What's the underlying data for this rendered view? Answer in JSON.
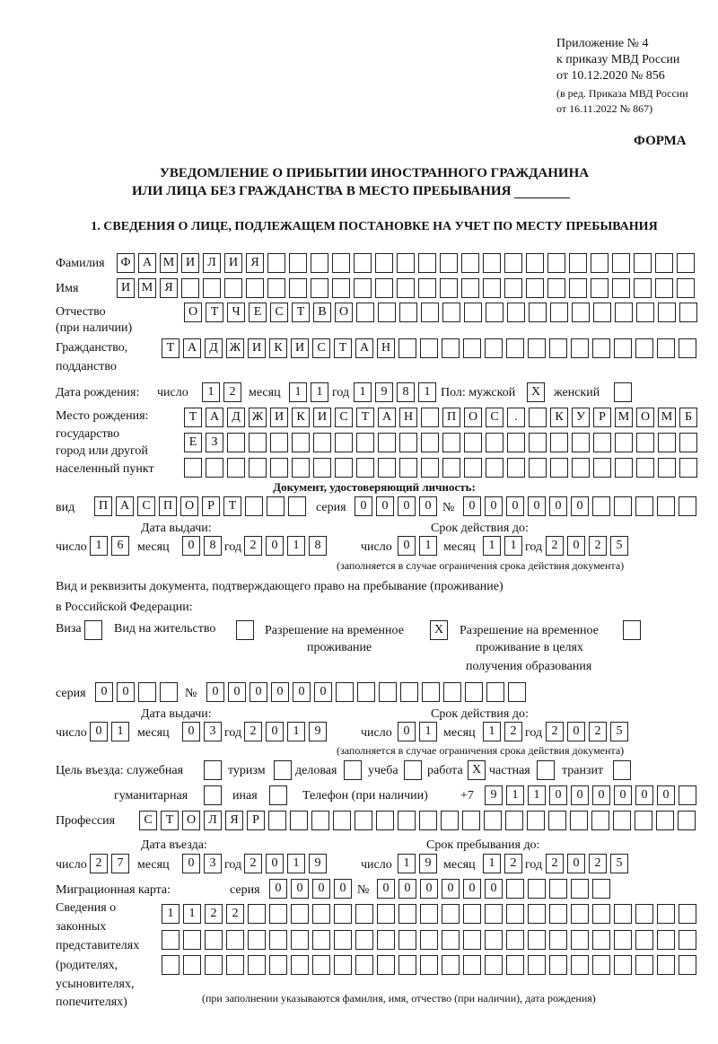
{
  "header": {
    "appendix": "Приложение № 4",
    "order": "к приказу МВД России",
    "order_date": "от 10.12.2020 № 856",
    "revision_1": "(в ред. Приказа МВД России",
    "revision_2": "от 16.11.2022 № 867)",
    "form_label": "ФОРМА",
    "title_1": "УВЕДОМЛЕНИЕ О ПРИБЫТИИ ИНОСТРАННОГО ГРАЖДАНИНА",
    "title_2": "ИЛИ ЛИЦА БЕЗ ГРАЖДАНСТВА В МЕСТО ПРЕБЫВАНИЯ",
    "section_1": "1. СВЕДЕНИЯ О ЛИЦЕ, ПОДЛЕЖАЩЕМ ПОСТАНОВКЕ НА УЧЕТ ПО МЕСТУ ПРЕБЫВАНИЯ"
  },
  "labels": {
    "surname": "Фамилия",
    "name": "Имя",
    "patronymic_1": "Отчество",
    "patronymic_2": "(при наличии)",
    "citizenship_1": "Гражданство,",
    "citizenship_2": "подданство",
    "birth_date": "Дата рождения:",
    "day": "число",
    "month": "месяц",
    "year": "год",
    "sex": "Пол: мужской",
    "female": "женский",
    "birthplace_1": "Место рождения:",
    "birthplace_2": "государство",
    "birthplace_3": "город или другой",
    "birthplace_4": "населенный пункт",
    "id_doc": "Документ, удостоверяющий личность:",
    "kind": "вид",
    "series": "серия",
    "number": "№",
    "issue_date": "Дата выдачи:",
    "valid_until": "Срок действия до:",
    "validity_note": "(заполняется в случае ограничения срока действия документа)",
    "stay_doc_1": "Вид и реквизиты документа, подтверждающего право на пребывание (проживание)",
    "stay_doc_2": "в Российской Федерации:",
    "visa": "Виза",
    "residence": "Вид на жительство",
    "temp_permit_1": "Разрешение на временное",
    "temp_permit_2": "проживание",
    "edu_permit_1": "Разрешение на временное",
    "edu_permit_2": "проживание в целях",
    "edu_permit_3": "получения образования",
    "purpose": "Цель въезда: служебная",
    "tourism": "туризм",
    "business": "деловая",
    "study": "учеба",
    "work": "работа",
    "private": "частная",
    "transit": "транзит",
    "humanitarian": "гуманитарная",
    "other": "иная",
    "phone": "Телефон (при наличии)",
    "phone_prefix": "+7",
    "profession": "Профессия",
    "entry_date": "Дата въезда:",
    "stay_until": "Срок пребывания до:",
    "migration_card": "Миграционная карта:",
    "reps_1": "Сведения о",
    "reps_2": "законных",
    "reps_3": "представителях",
    "reps_4": "(родителях,",
    "reps_5": "усыновителях,",
    "reps_6": "попечителях)",
    "reps_note": "(при заполнении указываются фамилия, имя, отчество (при наличии), дата рождения)"
  },
  "person": {
    "surname": "ФАМИЛИЯ",
    "name": "ИМЯ",
    "patronymic": "ОТЧЕСТВО",
    "citizenship": "ТАДЖИКИСТАН",
    "birth_day": "12",
    "birth_month": "11",
    "birth_year": "1981",
    "sex_male": "X",
    "sex_female": "",
    "birthplace_1": "ТАДЖИКИСТАН ПОС. КУРМОМБ",
    "birthplace_2": "ЕЗ",
    "birthplace_3": ""
  },
  "id_document": {
    "kind": "ПАСПОРТ",
    "series": "0000",
    "number": "000000",
    "issue_day": "16",
    "issue_month": "08",
    "issue_year": "2018",
    "valid_day": "01",
    "valid_month": "11",
    "valid_year": "2025"
  },
  "stay_document": {
    "visa": "",
    "residence": "",
    "temp_permit": "X",
    "edu_permit": "",
    "series": "00",
    "number": "000000",
    "issue_day": "01",
    "issue_month": "03",
    "issue_year": "2019",
    "valid_day": "01",
    "valid_month": "12",
    "valid_year": "2025"
  },
  "purpose": {
    "official": "",
    "tourism": "",
    "business": "",
    "study": "",
    "work": "X",
    "private": "",
    "transit": "",
    "humanitarian": "",
    "other": ""
  },
  "phone": "911000000",
  "profession": "СТОЛЯР",
  "entry": {
    "day": "27",
    "month": "03",
    "year": "2019",
    "until_day": "19",
    "until_month": "12",
    "until_year": "2025"
  },
  "migration_card": {
    "series": "0000",
    "number": "000000"
  },
  "representatives": {
    "line_1": "1122",
    "line_2": "",
    "line_3": ""
  }
}
